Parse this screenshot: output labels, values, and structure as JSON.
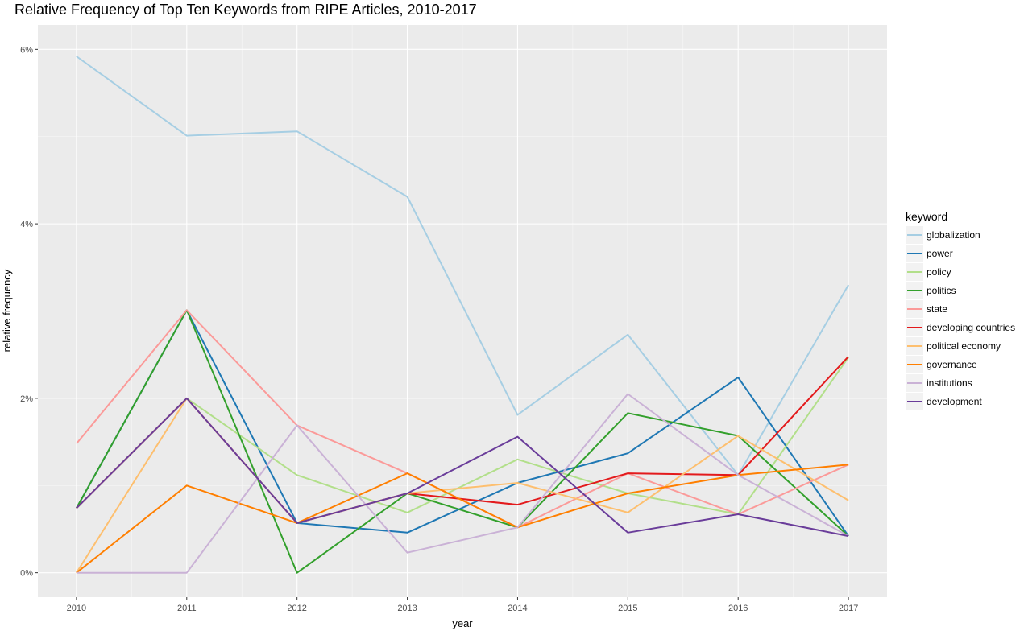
{
  "chart_data": {
    "type": "line",
    "title": "Relative Frequency of Top Ten Keywords from RIPE Articles, 2010-2017",
    "xlabel": "year",
    "ylabel": "relative frequency",
    "x": [
      2010,
      2011,
      2012,
      2013,
      2014,
      2015,
      2016,
      2017
    ],
    "x_tick_labels": [
      "2010",
      "2011",
      "2012",
      "2013",
      "2014",
      "2015",
      "2016",
      "2017"
    ],
    "ylim": [
      -0.28,
      6.28
    ],
    "y_ticks": [
      0,
      2,
      4,
      6
    ],
    "y_tick_labels": [
      "0%",
      "2%",
      "4%",
      "6%"
    ],
    "grid": true,
    "legend_title": "keyword",
    "legend_position": "right",
    "series": [
      {
        "name": "globalization",
        "color": "#a6cee3",
        "values": [
          5.92,
          5.01,
          5.06,
          4.31,
          1.81,
          2.73,
          1.12,
          3.3
        ]
      },
      {
        "name": "power",
        "color": "#1f78b4",
        "values": [
          0.74,
          3.01,
          0.57,
          0.46,
          1.03,
          1.37,
          2.24,
          0.42
        ]
      },
      {
        "name": "policy",
        "color": "#b2df8a",
        "values": [
          0.74,
          2.0,
          1.12,
          0.69,
          1.3,
          0.91,
          0.67,
          2.47
        ]
      },
      {
        "name": "politics",
        "color": "#33a02c",
        "values": [
          0.74,
          3.01,
          0.0,
          0.91,
          0.52,
          1.83,
          1.57,
          0.42
        ]
      },
      {
        "name": "state",
        "color": "#fb9a99",
        "values": [
          1.48,
          3.01,
          1.69,
          1.14,
          0.52,
          1.14,
          0.67,
          1.24
        ]
      },
      {
        "name": "developing countries",
        "color": "#e31a1c",
        "values": [
          0.74,
          2.0,
          0.57,
          0.91,
          0.78,
          1.14,
          1.12,
          2.48
        ]
      },
      {
        "name": "political economy",
        "color": "#fdbf6f",
        "values": [
          0.0,
          2.0,
          0.57,
          0.91,
          1.03,
          0.69,
          1.57,
          0.83
        ]
      },
      {
        "name": "governance",
        "color": "#ff7f00",
        "values": [
          0.0,
          1.0,
          0.57,
          1.14,
          0.52,
          0.91,
          1.12,
          1.24
        ]
      },
      {
        "name": "institutions",
        "color": "#cab2d6",
        "values": [
          0.0,
          0.0,
          1.69,
          0.23,
          0.52,
          2.05,
          1.12,
          0.42
        ]
      },
      {
        "name": "development",
        "color": "#6a3d9a",
        "values": [
          0.74,
          2.0,
          0.57,
          0.91,
          1.56,
          0.46,
          0.67,
          0.42
        ]
      }
    ]
  }
}
